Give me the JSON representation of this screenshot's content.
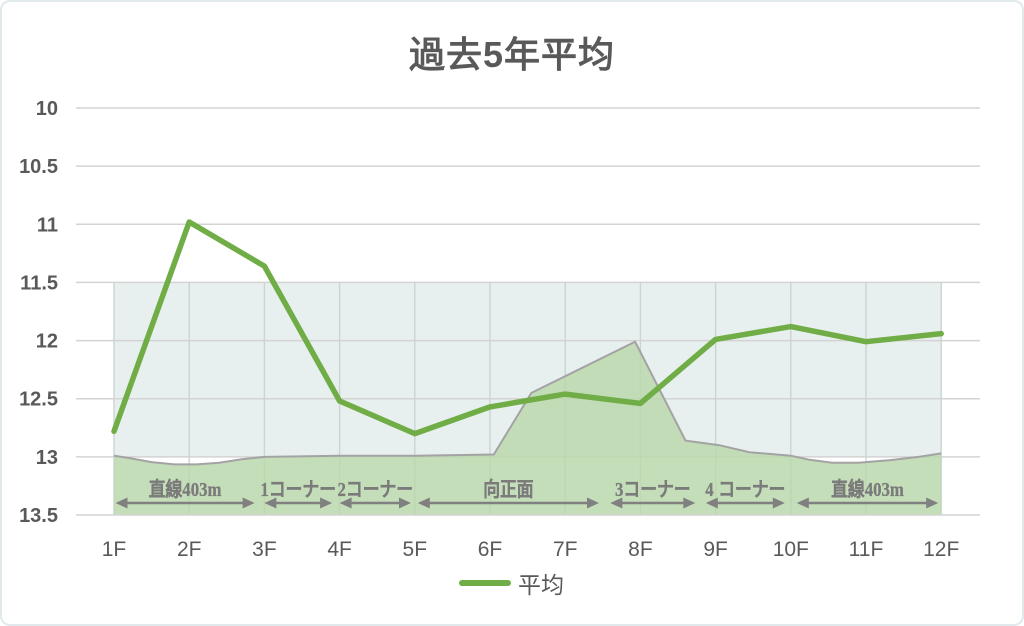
{
  "chart_data": {
    "type": "line",
    "title": "過去5年平均",
    "categories": [
      "1F",
      "2F",
      "3F",
      "4F",
      "5F",
      "6F",
      "7F",
      "8F",
      "9F",
      "10F",
      "11F",
      "12F"
    ],
    "series": [
      {
        "name": "平均",
        "color": "#70AD47",
        "values": [
          12.78,
          10.98,
          11.36,
          12.52,
          12.8,
          12.57,
          12.46,
          12.54,
          11.99,
          11.88,
          12.01,
          11.94
        ]
      }
    ],
    "y_axis": {
      "ticks": [
        10,
        10.5,
        11,
        11.5,
        12,
        12.5,
        13,
        13.5
      ],
      "min": 10,
      "max": 13.5,
      "reversed": true
    },
    "x_axis": {
      "unit": "F"
    },
    "band": {
      "from": 11.5,
      "to": 13.0,
      "color": "#E8F0EF"
    },
    "course_profile": {
      "color": "#B9D8AB",
      "outline": "#A3A3A3",
      "baseline": 13.5,
      "points": [
        [
          1,
          12.99
        ],
        [
          1.2,
          13.01
        ],
        [
          1.5,
          13.045
        ],
        [
          1.8,
          13.065
        ],
        [
          2.1,
          13.065
        ],
        [
          2.4,
          13.05
        ],
        [
          2.7,
          13.02
        ],
        [
          3,
          13.0
        ],
        [
          4,
          12.99
        ],
        [
          5,
          12.99
        ],
        [
          6.05,
          12.98
        ],
        [
          6.55,
          12.45
        ],
        [
          7.93,
          12.01
        ],
        [
          8.6,
          12.86
        ],
        [
          9.05,
          12.9
        ],
        [
          9.45,
          12.96
        ],
        [
          10,
          12.99
        ],
        [
          10.25,
          13.025
        ],
        [
          10.55,
          13.05
        ],
        [
          10.9,
          13.05
        ],
        [
          11.3,
          13.03
        ],
        [
          11.7,
          13.0
        ],
        [
          12,
          12.97
        ]
      ]
    },
    "course_sections": [
      {
        "label": "直線403m",
        "from": 1.02,
        "to": 2.87
      },
      {
        "label": "1コーナー",
        "from": 3.0,
        "to": 3.9
      },
      {
        "label": "2コーナー",
        "from": 4.0,
        "to": 4.95
      },
      {
        "label": "向正面",
        "from": 5.04,
        "to": 7.45
      },
      {
        "label": "3コーナー",
        "from": 7.6,
        "to": 8.73
      },
      {
        "label": "4 コーナー",
        "from": 8.87,
        "to": 9.92
      },
      {
        "label": "直線403m",
        "from": 10.08,
        "to": 11.96
      }
    ],
    "legend": {
      "position": "bottom",
      "items": [
        {
          "label": "平均",
          "color": "#70AD47"
        }
      ]
    },
    "grid": {
      "h_color": "#D3D3D3",
      "v_color": "#CBD4D2"
    },
    "text_color": "#595959",
    "section_text_color": "#7B7B7B",
    "arrow_color": "#808080"
  }
}
